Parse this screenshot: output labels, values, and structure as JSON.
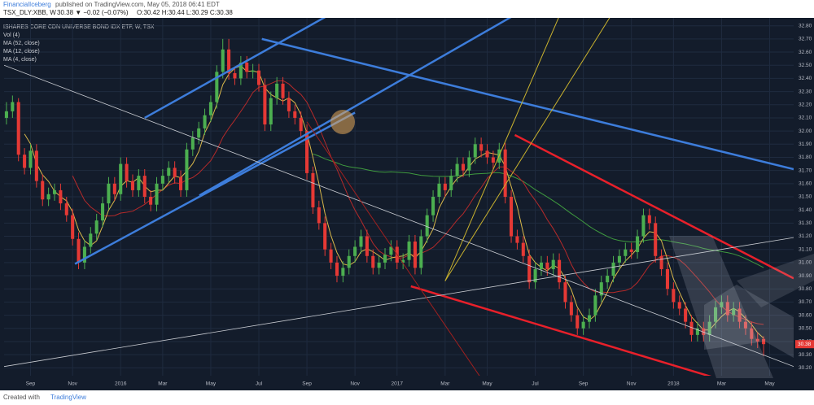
{
  "header": {
    "author": "FinancialIceberg",
    "published": "published on TradingView.com, May 05, 2018 06:41 EDT",
    "symbol": "TSX_DLY:XBB, W",
    "quote": "30.38 ▼ −0.02 (−0.07%)",
    "ohlc": "O:30.42 H:30.44 L:30.29 C:30.38"
  },
  "footer": {
    "created": "Created with",
    "brand": "TradingView"
  },
  "chart_data": {
    "type": "candlestick",
    "title": "ISHARES CORE CDN UNIVERSE BOND IDX ETF, W, TSX",
    "legend": [
      "Vol (4)"
    ],
    "up_color": "#4caf50",
    "down_color": "#e53935",
    "indicators": [
      {
        "label": "MA (52, close)",
        "period": 52,
        "color": "#3f9a3f"
      },
      {
        "label": "MA (12, close)",
        "period": 12,
        "color": "#b52a2a"
      },
      {
        "label": "MA (4, close)",
        "period": 4,
        "color": "#d9b84a"
      }
    ],
    "candles": [
      [
        32.1,
        32.22,
        32.05,
        32.15
      ],
      [
        32.15,
        32.27,
        32.1,
        32.22
      ],
      [
        32.22,
        32.25,
        31.77,
        31.82
      ],
      [
        31.82,
        31.87,
        31.67,
        31.72
      ],
      [
        31.72,
        31.9,
        31.67,
        31.85
      ],
      [
        31.85,
        31.9,
        31.57,
        31.62
      ],
      [
        31.62,
        31.67,
        31.43,
        31.48
      ],
      [
        31.48,
        31.57,
        31.43,
        31.52
      ],
      [
        31.52,
        31.6,
        31.47,
        31.55
      ],
      [
        31.55,
        31.6,
        31.4,
        31.45
      ],
      [
        31.45,
        31.5,
        31.31,
        31.36
      ],
      [
        31.36,
        31.41,
        31.13,
        31.18
      ],
      [
        31.18,
        31.23,
        30.95,
        31.0
      ],
      [
        31.0,
        31.17,
        30.95,
        31.12
      ],
      [
        31.12,
        31.27,
        31.07,
        31.22
      ],
      [
        31.22,
        31.37,
        31.17,
        31.32
      ],
      [
        31.32,
        31.5,
        31.27,
        31.45
      ],
      [
        31.45,
        31.65,
        31.4,
        31.6
      ],
      [
        31.6,
        31.65,
        31.47,
        31.52
      ],
      [
        31.52,
        31.8,
        31.47,
        31.75
      ],
      [
        31.75,
        31.8,
        31.57,
        31.62
      ],
      [
        31.62,
        31.67,
        31.5,
        31.55
      ],
      [
        31.55,
        31.71,
        31.5,
        31.66
      ],
      [
        31.66,
        31.71,
        31.45,
        31.5
      ],
      [
        31.5,
        31.55,
        31.39,
        31.44
      ],
      [
        31.44,
        31.65,
        31.39,
        31.6
      ],
      [
        31.6,
        31.71,
        31.55,
        31.66
      ],
      [
        31.66,
        31.77,
        31.61,
        31.72
      ],
      [
        31.72,
        31.77,
        31.6,
        31.65
      ],
      [
        31.65,
        31.7,
        31.5,
        31.55
      ],
      [
        31.55,
        31.91,
        31.5,
        31.86
      ],
      [
        31.86,
        32.0,
        31.81,
        31.95
      ],
      [
        31.95,
        32.07,
        31.9,
        32.02
      ],
      [
        32.02,
        32.17,
        31.97,
        32.12
      ],
      [
        32.12,
        32.27,
        32.07,
        32.22
      ],
      [
        32.22,
        32.5,
        32.17,
        32.45
      ],
      [
        32.45,
        32.7,
        32.4,
        32.62
      ],
      [
        32.62,
        32.7,
        32.39,
        32.44
      ],
      [
        32.44,
        32.49,
        32.35,
        32.4
      ],
      [
        32.4,
        32.57,
        32.35,
        32.52
      ],
      [
        32.52,
        32.57,
        32.4,
        32.45
      ],
      [
        32.45,
        32.51,
        32.4,
        32.46
      ],
      [
        32.46,
        32.51,
        32.3,
        32.35
      ],
      [
        32.35,
        32.4,
        32.0,
        32.05
      ],
      [
        32.05,
        32.3,
        32.0,
        32.25
      ],
      [
        32.25,
        32.41,
        32.2,
        32.36
      ],
      [
        32.36,
        32.41,
        32.2,
        32.25
      ],
      [
        32.25,
        32.3,
        32.1,
        32.15
      ],
      [
        32.15,
        32.2,
        32.05,
        32.1
      ],
      [
        32.1,
        32.15,
        31.95,
        32.0
      ],
      [
        32.0,
        32.05,
        31.63,
        31.68
      ],
      [
        31.68,
        31.73,
        31.37,
        31.42
      ],
      [
        31.42,
        31.47,
        31.25,
        31.3
      ],
      [
        31.3,
        31.35,
        31.05,
        31.1
      ],
      [
        31.1,
        31.15,
        30.95,
        31.0
      ],
      [
        31.0,
        31.05,
        30.85,
        30.9
      ],
      [
        30.9,
        31.01,
        30.85,
        30.96
      ],
      [
        30.96,
        31.1,
        30.91,
        31.05
      ],
      [
        31.05,
        31.17,
        31.0,
        31.12
      ],
      [
        31.12,
        31.25,
        31.07,
        31.2
      ],
      [
        31.2,
        31.25,
        31.0,
        31.05
      ],
      [
        31.05,
        31.1,
        30.91,
        30.96
      ],
      [
        30.96,
        31.05,
        30.91,
        31.0
      ],
      [
        31.0,
        31.11,
        30.95,
        31.06
      ],
      [
        31.06,
        31.17,
        31.01,
        31.12
      ],
      [
        31.12,
        31.17,
        30.95,
        31.0
      ],
      [
        31.0,
        31.07,
        30.95,
        31.02
      ],
      [
        31.02,
        31.21,
        30.97,
        31.16
      ],
      [
        31.16,
        31.21,
        30.91,
        30.96
      ],
      [
        30.96,
        31.25,
        30.91,
        31.2
      ],
      [
        31.2,
        31.41,
        31.15,
        31.36
      ],
      [
        31.36,
        31.55,
        31.31,
        31.5
      ],
      [
        31.5,
        31.65,
        31.45,
        31.6
      ],
      [
        31.6,
        31.65,
        31.5,
        31.55
      ],
      [
        31.55,
        31.71,
        31.5,
        31.66
      ],
      [
        31.66,
        31.8,
        31.61,
        31.75
      ],
      [
        31.75,
        31.8,
        31.65,
        31.7
      ],
      [
        31.7,
        31.85,
        31.65,
        31.8
      ],
      [
        31.8,
        31.95,
        31.75,
        31.9
      ],
      [
        31.9,
        31.95,
        31.8,
        31.85
      ],
      [
        31.85,
        31.9,
        31.75,
        31.8
      ],
      [
        31.8,
        31.85,
        31.71,
        31.76
      ],
      [
        31.76,
        31.91,
        31.71,
        31.86
      ],
      [
        31.86,
        31.91,
        31.45,
        31.5
      ],
      [
        31.5,
        31.55,
        31.15,
        31.2
      ],
      [
        31.2,
        31.25,
        31.1,
        31.15
      ],
      [
        31.15,
        31.2,
        31.0,
        31.05
      ],
      [
        31.05,
        31.1,
        30.8,
        30.85
      ],
      [
        30.85,
        31.0,
        30.8,
        30.95
      ],
      [
        30.95,
        31.05,
        30.9,
        31.0
      ],
      [
        31.0,
        31.05,
        30.9,
        30.95
      ],
      [
        30.95,
        31.07,
        30.9,
        31.02
      ],
      [
        31.02,
        31.07,
        30.8,
        30.85
      ],
      [
        30.85,
        30.9,
        30.65,
        30.7
      ],
      [
        30.7,
        30.75,
        30.55,
        30.6
      ],
      [
        30.6,
        30.65,
        30.45,
        30.5
      ],
      [
        30.5,
        30.6,
        30.45,
        30.55
      ],
      [
        30.55,
        30.65,
        30.5,
        30.6
      ],
      [
        30.6,
        30.8,
        30.55,
        30.75
      ],
      [
        30.75,
        30.9,
        30.7,
        30.85
      ],
      [
        30.85,
        30.95,
        30.8,
        30.9
      ],
      [
        30.9,
        31.05,
        30.85,
        31.0
      ],
      [
        31.0,
        31.1,
        30.95,
        31.05
      ],
      [
        31.05,
        31.15,
        31.0,
        31.1
      ],
      [
        31.1,
        31.15,
        31.03,
        31.08
      ],
      [
        31.08,
        31.25,
        31.03,
        31.2
      ],
      [
        31.2,
        31.41,
        31.15,
        31.36
      ],
      [
        31.36,
        31.41,
        31.25,
        31.3
      ],
      [
        31.3,
        31.35,
        31.0,
        31.05
      ],
      [
        31.05,
        31.1,
        30.9,
        30.95
      ],
      [
        30.95,
        31.0,
        30.75,
        30.8
      ],
      [
        30.8,
        30.85,
        30.65,
        30.7
      ],
      [
        30.7,
        30.75,
        30.6,
        30.65
      ],
      [
        30.65,
        30.7,
        30.5,
        30.55
      ],
      [
        30.55,
        30.6,
        30.4,
        30.45
      ],
      [
        30.45,
        30.55,
        30.4,
        30.5
      ],
      [
        30.5,
        30.55,
        30.4,
        30.45
      ],
      [
        30.45,
        30.6,
        30.4,
        30.55
      ],
      [
        30.55,
        30.71,
        30.5,
        30.66
      ],
      [
        30.66,
        30.75,
        30.61,
        30.7
      ],
      [
        30.7,
        30.75,
        30.55,
        30.6
      ],
      [
        30.6,
        30.7,
        30.55,
        30.65
      ],
      [
        30.65,
        30.7,
        30.5,
        30.55
      ],
      [
        30.55,
        30.6,
        30.45,
        30.5
      ],
      [
        30.5,
        30.55,
        30.37,
        30.42
      ],
      [
        30.42,
        30.47,
        30.35,
        30.4
      ],
      [
        30.42,
        30.44,
        30.29,
        30.38
      ]
    ],
    "drawings": [
      {
        "color": "#3d7ddb",
        "width": 2.5,
        "points": [
          [
            11.4,
            30.99
          ],
          [
            58,
            32.14
          ]
        ]
      },
      {
        "color": "#3d7ddb",
        "width": 2.5,
        "points": [
          [
            23,
            32.1
          ],
          [
            57.5,
            32.98
          ]
        ]
      },
      {
        "color": "#3d7ddb",
        "width": 2.5,
        "points": [
          [
            32.1,
            31.51
          ],
          [
            88.3,
            32.98
          ]
        ]
      },
      {
        "color": "#3d7ddb",
        "width": 2.5,
        "points": [
          [
            42.5,
            32.7
          ],
          [
            131,
            31.71
          ]
        ]
      },
      {
        "color": "#e8202a",
        "width": 2.5,
        "points": [
          [
            84.6,
            31.97
          ],
          [
            131,
            30.88
          ]
        ]
      },
      {
        "color": "#e8202a",
        "width": 2.5,
        "points": [
          [
            67.3,
            30.82
          ],
          [
            118.2,
            30.12
          ]
        ]
      },
      {
        "color": "#c9ccd2",
        "width": 0.8,
        "points": [
          [
            -0.4,
            32.5
          ],
          [
            131,
            30.21
          ]
        ]
      },
      {
        "color": "#c9ccd2",
        "width": 0.8,
        "points": [
          [
            -0.4,
            30.21
          ],
          [
            131,
            31.19
          ]
        ]
      },
      {
        "color": "#c9b22e",
        "width": 1,
        "points": [
          [
            73,
            30.86
          ],
          [
            93,
            32.98
          ]
        ]
      },
      {
        "color": "#c9b22e",
        "width": 1,
        "points": [
          [
            73,
            30.86
          ],
          [
            102,
            32.98
          ]
        ]
      },
      {
        "color": "#a0201f",
        "width": 1,
        "points": [
          [
            50,
            32.07
          ],
          [
            79,
            30.12
          ]
        ]
      }
    ],
    "xlim": [
      -0.4,
      131
    ],
    "ylim": [
      30.14,
      32.86
    ],
    "xticks": [
      {
        "value": 4,
        "label": "Sep"
      },
      {
        "value": 11,
        "label": "Nov"
      },
      {
        "value": 19,
        "label": "2016"
      },
      {
        "value": 26,
        "label": "Mar"
      },
      {
        "value": 34,
        "label": "May"
      },
      {
        "value": 42,
        "label": "Jul"
      },
      {
        "value": 50,
        "label": "Sep"
      },
      {
        "value": 58,
        "label": "Nov"
      },
      {
        "value": 65,
        "label": "2017"
      },
      {
        "value": 73,
        "label": "Mar"
      },
      {
        "value": 80,
        "label": "May"
      },
      {
        "value": 88,
        "label": "Jul"
      },
      {
        "value": 96,
        "label": "Sep"
      },
      {
        "value": 104,
        "label": "Nov"
      },
      {
        "value": 111,
        "label": "2018"
      },
      {
        "value": 119,
        "label": "Mar"
      },
      {
        "value": 127,
        "label": "May"
      }
    ],
    "yticks": [
      {
        "value": 30.2,
        "label": "30.20"
      },
      {
        "value": 30.3,
        "label": "30.30"
      },
      {
        "value": 30.4,
        "label": "30.40"
      },
      {
        "value": 30.5,
        "label": "30.50"
      },
      {
        "value": 30.6,
        "label": "30.60"
      },
      {
        "value": 30.7,
        "label": "30.70"
      },
      {
        "value": 30.8,
        "label": "30.80"
      },
      {
        "value": 30.9,
        "label": "30.90"
      },
      {
        "value": 31.0,
        "label": "31.00"
      },
      {
        "value": 31.1,
        "label": "31.10"
      },
      {
        "value": 31.2,
        "label": "31.20"
      },
      {
        "value": 31.3,
        "label": "31.30"
      },
      {
        "value": 31.4,
        "label": "31.40"
      },
      {
        "value": 31.5,
        "label": "31.50"
      },
      {
        "value": 31.6,
        "label": "31.60"
      },
      {
        "value": 31.7,
        "label": "31.70"
      },
      {
        "value": 31.8,
        "label": "31.80"
      },
      {
        "value": 31.9,
        "label": "31.90"
      },
      {
        "value": 32.0,
        "label": "32.00"
      },
      {
        "value": 32.1,
        "label": "32.10"
      },
      {
        "value": 32.2,
        "label": "32.20"
      },
      {
        "value": 32.3,
        "label": "32.30"
      },
      {
        "value": 32.4,
        "label": "32.40"
      },
      {
        "value": 32.5,
        "label": "32.50"
      },
      {
        "value": 32.6,
        "label": "32.60"
      },
      {
        "value": 32.7,
        "label": "32.70"
      },
      {
        "value": 32.8,
        "label": "32.80"
      }
    ],
    "grid": true
  }
}
